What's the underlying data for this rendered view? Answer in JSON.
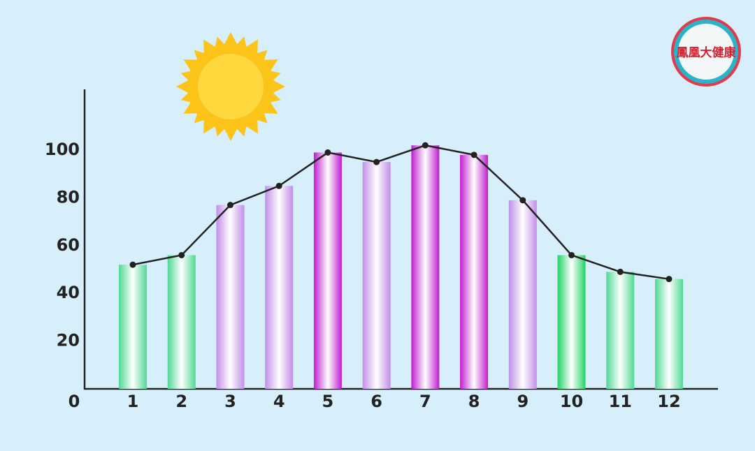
{
  "logo_text": "鳳凰大健康",
  "chart_data": {
    "type": "bar",
    "categories": [
      "1",
      "2",
      "3",
      "4",
      "5",
      "6",
      "7",
      "8",
      "9",
      "10",
      "11",
      "12"
    ],
    "values": [
      52,
      56,
      77,
      85,
      99,
      95,
      102,
      98,
      79,
      56,
      49,
      46
    ],
    "colors": [
      "#4fd894",
      "#4fd894",
      "#c28ee8",
      "#c28ee8",
      "#c01ccf",
      "#c28ee8",
      "#c01ccf",
      "#c01ccf",
      "#c28ee8",
      "#1fd466",
      "#4fd894",
      "#4fd894"
    ],
    "line_color": "#222222",
    "ylim": [
      0,
      125
    ],
    "yticks": [
      0,
      20,
      40,
      60,
      80,
      100
    ]
  }
}
